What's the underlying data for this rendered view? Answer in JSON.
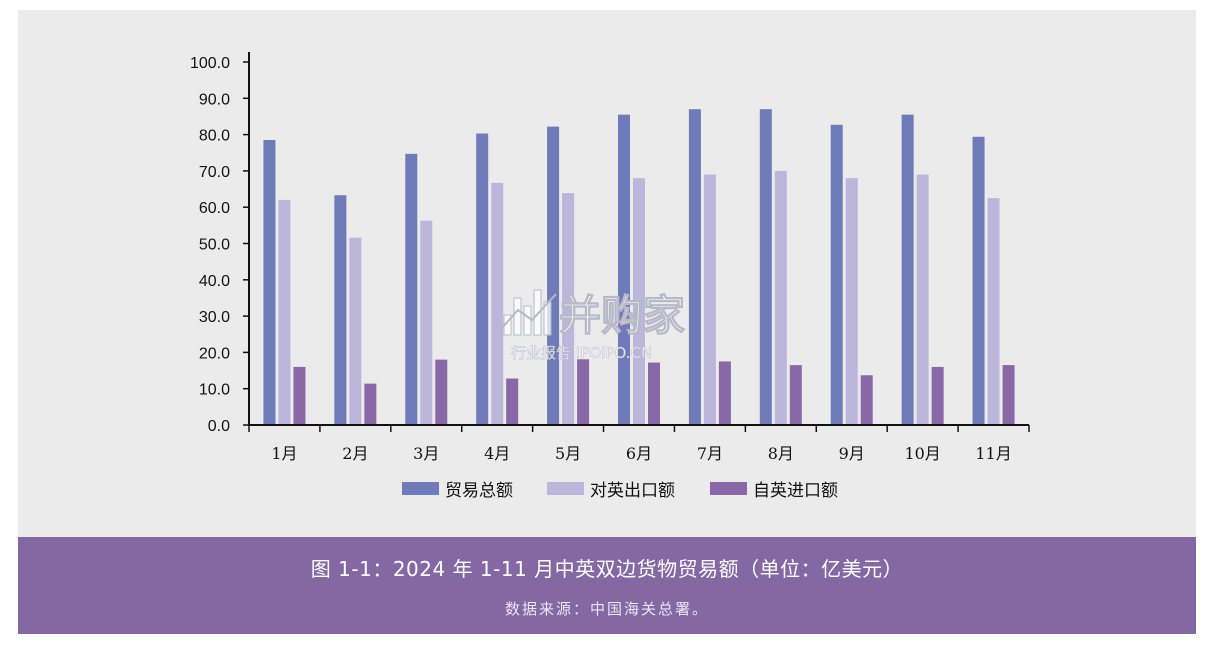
{
  "chart_data": {
    "type": "bar",
    "categories": [
      "1月",
      "2月",
      "3月",
      "4月",
      "5月",
      "6月",
      "7月",
      "8月",
      "9月",
      "10月",
      "11月"
    ],
    "series": [
      {
        "name": "贸易总额",
        "color": "#6f7ab8",
        "values": [
          78.5,
          63.3,
          74.7,
          80.3,
          82.2,
          85.5,
          87.0,
          87.0,
          82.7,
          85.5,
          79.4
        ]
      },
      {
        "name": "对英出口额",
        "color": "#bcb6da",
        "values": [
          62.0,
          51.6,
          56.3,
          66.7,
          63.9,
          68.0,
          69.0,
          70.0,
          68.0,
          69.0,
          62.5
        ]
      },
      {
        "name": "自英进口额",
        "color": "#8868a6",
        "values": [
          16.0,
          11.4,
          18.0,
          12.8,
          18.1,
          17.2,
          17.5,
          16.5,
          13.7,
          16.0,
          16.5
        ]
      }
    ],
    "y_ticks": [
      "0.0",
      "10.0",
      "20.0",
      "30.0",
      "40.0",
      "50.0",
      "60.0",
      "70.0",
      "80.0",
      "90.0",
      "100.0"
    ],
    "ylim": [
      0,
      100
    ],
    "legend_position": "bottom",
    "grid": false
  },
  "watermark": {
    "brand": "并购家",
    "tagline": "行业报告 IPOIPO.CN",
    "icon": "bar-chart-logo-icon"
  },
  "caption": {
    "title": "图 1-1：2024 年 1-11 月中英双边货物贸易额（单位：亿美元）",
    "source": "数据来源：中国海关总署。"
  }
}
